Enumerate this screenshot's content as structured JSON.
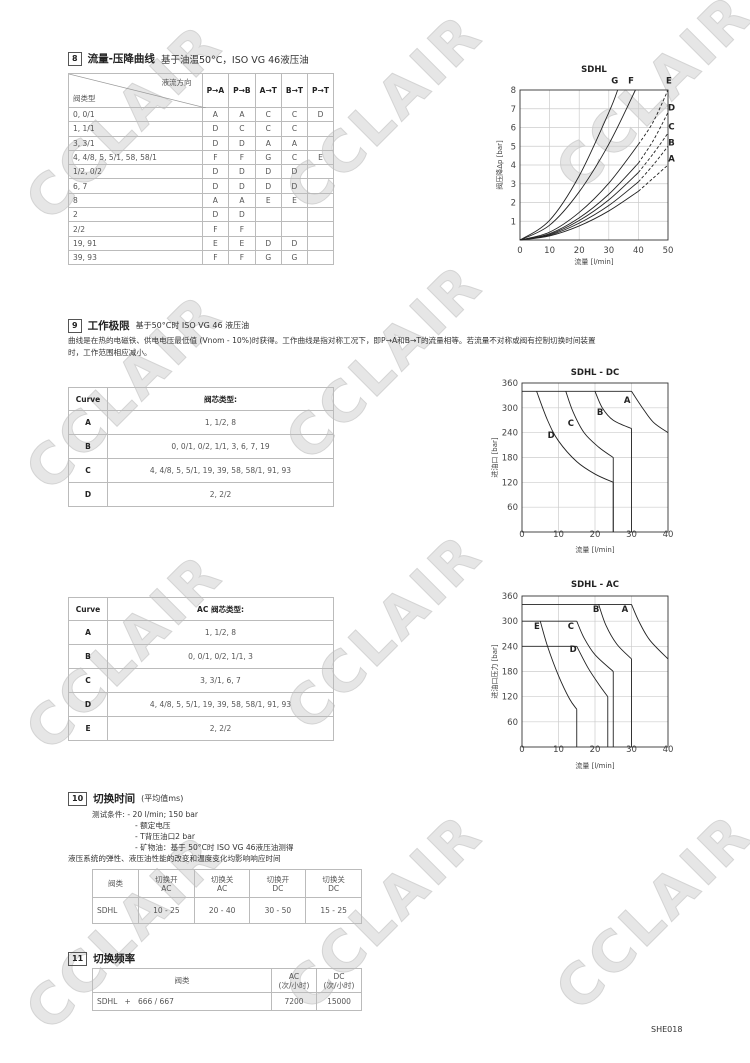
{
  "watermark": "CCLAIR",
  "section8": {
    "number": "8",
    "title": "流量-压降曲线",
    "subtitle": "基于油温50°C，ISO VG 46液压油",
    "table": {
      "corner_top": "液流方向",
      "corner_bottom": "阀类型",
      "columns": [
        "P→A",
        "P→B",
        "A→T",
        "B→T",
        "P→T"
      ],
      "rows": [
        {
          "type": "0, 0/1",
          "values": [
            "A",
            "A",
            "C",
            "C",
            "D"
          ]
        },
        {
          "type": "1, 1/1",
          "values": [
            "D",
            "C",
            "C",
            "C",
            ""
          ]
        },
        {
          "type": "3, 3/1",
          "values": [
            "D",
            "D",
            "A",
            "A",
            ""
          ]
        },
        {
          "type": "4, 4/8, 5, 5/1, 58, 58/1",
          "values": [
            "F",
            "F",
            "G",
            "C",
            "E"
          ]
        },
        {
          "type": "1/2, 0/2",
          "values": [
            "D",
            "D",
            "D",
            "D",
            ""
          ]
        },
        {
          "type": "6, 7",
          "values": [
            "D",
            "D",
            "D",
            "D",
            ""
          ]
        },
        {
          "type": "8",
          "values": [
            "A",
            "A",
            "E",
            "E",
            ""
          ]
        },
        {
          "type": "2",
          "values": [
            "D",
            "D",
            "",
            "",
            ""
          ]
        },
        {
          "type": "2/2",
          "values": [
            "F",
            "F",
            "",
            "",
            ""
          ]
        },
        {
          "type": "19, 91",
          "values": [
            "E",
            "E",
            "D",
            "D",
            ""
          ]
        },
        {
          "type": "39, 93",
          "values": [
            "F",
            "F",
            "G",
            "G",
            ""
          ]
        }
      ]
    }
  },
  "section9": {
    "number": "9",
    "title": "工作极限",
    "subtitle": "基于50°C时 ISO VG 46 液压油",
    "paragraph_line1": "曲线是在热的电磁铁、供电电压最低值 (Vnom - 10%)时获得。工作曲线是指对称工况下，即P→A和B→T的流量相等。若流量不对称或阀有控制切换时间装置",
    "paragraph_line2": "时，工作范围相应减小。",
    "dc_table": {
      "headers": [
        "Curve",
        "阀芯类型:"
      ],
      "rows": [
        {
          "curve": "A",
          "types": "1, 1/2, 8"
        },
        {
          "curve": "B",
          "types": "0, 0/1, 0/2, 1/1, 3, 6, 7, 19"
        },
        {
          "curve": "C",
          "types": "4, 4/8, 5, 5/1, 19, 39, 58, 58/1, 91, 93"
        },
        {
          "curve": "D",
          "types": "2, 2/2"
        }
      ]
    },
    "ac_table": {
      "headers": [
        "Curve",
        "AC 阀芯类型:"
      ],
      "rows": [
        {
          "curve": "A",
          "types": "1, 1/2, 8"
        },
        {
          "curve": "B",
          "types": "0, 0/1, 0/2, 1/1, 3"
        },
        {
          "curve": "C",
          "types": "3, 3/1, 6, 7"
        },
        {
          "curve": "D",
          "types": "4, 4/8, 5, 5/1, 19, 39, 58, 58/1, 91, 93"
        },
        {
          "curve": "E",
          "types": "2, 2/2"
        }
      ]
    }
  },
  "section10": {
    "number": "10",
    "title": "切换时间",
    "subtitle": "(平均值ms)",
    "conditions_label": "测试条件:",
    "conditions": [
      "- 20 l/min; 150 bar",
      "- 额定电压",
      "- T背压油口2 bar",
      "- 矿物油：基于 50°C时 ISO VG 46液压油测得"
    ],
    "note": "液压系统的弹性、液压油性能的改变和温度变化均影响响应时间",
    "table": {
      "headers": [
        [
          "阀类",
          ""
        ],
        [
          "切换开",
          "AC"
        ],
        [
          "切换关",
          "AC"
        ],
        [
          "切换开",
          "DC"
        ],
        [
          "切换关",
          "DC"
        ]
      ],
      "row": [
        "SDHL",
        "10 - 25",
        "20 - 40",
        "30 - 50",
        "15 - 25"
      ]
    }
  },
  "section11": {
    "number": "11",
    "title": "切换频率",
    "table": {
      "headers": [
        [
          "阀类",
          ""
        ],
        [
          "AC",
          "(次/小时)"
        ],
        [
          "DC",
          "(次/小时)"
        ]
      ],
      "row": [
        "SDHL   +   666 / 667",
        "7200",
        "15000"
      ]
    }
  },
  "footer": {
    "code": "SHE018"
  },
  "chart_data": [
    {
      "type": "line",
      "title": "SDHL",
      "xlabel": "流量 [l/min]",
      "ylabel": "阀压降Δp [bar]",
      "xlim": [
        0,
        50
      ],
      "ylim": [
        0,
        8
      ],
      "xticks": [
        0,
        10,
        20,
        30,
        40,
        50
      ],
      "yticks": [
        1,
        2,
        3,
        4,
        5,
        6,
        7,
        8
      ],
      "grid": true,
      "series": [
        {
          "name": "G",
          "segments": [
            {
              "kind": "curve",
              "points": [
                [
                  0,
                  0
                ],
                [
                  10,
                  1.05
                ],
                [
                  20,
                  3.42
                ],
                [
                  30,
                  6.8
                ],
                [
                  33,
                  8
                ]
              ]
            }
          ]
        },
        {
          "name": "F",
          "segments": [
            {
              "kind": "curve",
              "points": [
                [
                  0,
                  0
                ],
                [
                  10,
                  0.79
                ],
                [
                  20,
                  2.57
                ],
                [
                  30,
                  5.11
                ],
                [
                  39,
                  8
                ]
              ]
            }
          ]
        },
        {
          "name": "E",
          "segments": [
            {
              "kind": "curve",
              "points": [
                [
                  0,
                  0
                ],
                [
                  10,
                  0.42
                ],
                [
                  20,
                  1.47
                ],
                [
                  30,
                  3.03
                ],
                [
                  40,
                  5.1
                ]
              ]
            },
            {
              "kind": "curve",
              "dashed": true,
              "points": [
                [
                  40,
                  5.1
                ],
                [
                  45,
                  6.3
                ],
                [
                  50,
                  8
                ]
              ]
            }
          ]
        },
        {
          "name": "D",
          "segments": [
            {
              "kind": "curve",
              "points": [
                [
                  0,
                  0
                ],
                [
                  10,
                  0.34
                ],
                [
                  20,
                  1.18
                ],
                [
                  30,
                  2.44
                ],
                [
                  40,
                  4.1
                ]
              ]
            },
            {
              "kind": "curve",
              "dashed": true,
              "points": [
                [
                  40,
                  4.1
                ],
                [
                  45,
                  5.3
                ],
                [
                  50,
                  6.8
                ]
              ]
            }
          ]
        },
        {
          "name": "C",
          "segments": [
            {
              "kind": "curve",
              "points": [
                [
                  0,
                  0
                ],
                [
                  10,
                  0.3
                ],
                [
                  20,
                  1.04
                ],
                [
                  30,
                  2.14
                ],
                [
                  40,
                  3.6
                ]
              ]
            },
            {
              "kind": "curve",
              "dashed": true,
              "points": [
                [
                  40,
                  3.6
                ],
                [
                  45,
                  4.6
                ],
                [
                  50,
                  5.7
                ]
              ]
            }
          ]
        },
        {
          "name": "B",
          "segments": [
            {
              "kind": "curve",
              "points": [
                [
                  0,
                  0
                ],
                [
                  10,
                  0.26
                ],
                [
                  20,
                  0.9
                ],
                [
                  30,
                  1.84
                ],
                [
                  40,
                  3.1
                ]
              ]
            },
            {
              "kind": "curve",
              "dashed": true,
              "points": [
                [
                  40,
                  3.1
                ],
                [
                  45,
                  4.0
                ],
                [
                  50,
                  5.0
                ]
              ]
            }
          ]
        },
        {
          "name": "A",
          "segments": [
            {
              "kind": "curve",
              "points": [
                [
                  0,
                  0
                ],
                [
                  10,
                  0.22
                ],
                [
                  20,
                  0.75
                ],
                [
                  30,
                  1.55
                ],
                [
                  40,
                  2.6
                ]
              ]
            },
            {
              "kind": "curve",
              "dashed": true,
              "points": [
                [
                  40,
                  2.6
                ],
                [
                  45,
                  3.3
                ],
                [
                  50,
                  4.0
                ]
              ]
            }
          ]
        }
      ]
    },
    {
      "type": "line",
      "title": "SDHL - DC",
      "xlabel": "流量 [l/min]",
      "ylabel": "进油口 [bar]",
      "xlim": [
        0,
        40
      ],
      "ylim": [
        0,
        360
      ],
      "xticks": [
        0,
        10,
        20,
        30,
        40
      ],
      "yticks": [
        60,
        120,
        180,
        240,
        300,
        360
      ],
      "grid": true,
      "series": [
        {
          "name": "A",
          "segments": [
            {
              "kind": "line",
              "points": [
                [
                  0,
                  340
                ],
                [
                  30,
                  340
                ]
              ]
            },
            {
              "kind": "curve",
              "points": [
                [
                  30,
                  340
                ],
                [
                  33,
                  300
                ],
                [
                  36,
                  265
                ],
                [
                  40,
                  240
                ]
              ]
            }
          ]
        },
        {
          "name": "B",
          "segments": [
            {
              "kind": "curve",
              "points": [
                [
                  20,
                  340
                ],
                [
                  22,
                  300
                ],
                [
                  25,
                  270
                ],
                [
                  30,
                  250
                ]
              ]
            },
            {
              "kind": "line",
              "points": [
                [
                  30,
                  250
                ],
                [
                  30,
                  0
                ]
              ]
            }
          ]
        },
        {
          "name": "C",
          "segments": [
            {
              "kind": "curve",
              "points": [
                [
                  12,
                  340
                ],
                [
                  14,
                  290
                ],
                [
                  17,
                  240
                ],
                [
                  21,
                  205
                ],
                [
                  25,
                  180
                ]
              ]
            },
            {
              "kind": "line",
              "points": [
                [
                  25,
                  180
                ],
                [
                  25,
                  0
                ]
              ]
            }
          ]
        },
        {
          "name": "D",
          "segments": [
            {
              "kind": "curve",
              "points": [
                [
                  4,
                  340
                ],
                [
                  7,
                  270
                ],
                [
                  10,
                  220
                ],
                [
                  15,
                  170
                ],
                [
                  20,
                  140
                ],
                [
                  25,
                  120
                ]
              ]
            },
            {
              "kind": "line",
              "points": [
                [
                  25,
                  120
                ],
                [
                  25,
                  0
                ]
              ]
            }
          ]
        }
      ]
    },
    {
      "type": "line",
      "title": "SDHL - AC",
      "xlabel": "流量 [l/min]",
      "ylabel": "进油口压力 [bar]",
      "xlim": [
        0,
        40
      ],
      "ylim": [
        0,
        360
      ],
      "xticks": [
        0,
        10,
        20,
        30,
        40
      ],
      "yticks": [
        60,
        120,
        180,
        240,
        300,
        360
      ],
      "grid": true,
      "series": [
        {
          "name": "A",
          "segments": [
            {
              "kind": "line",
              "points": [
                [
                  0,
                  340
                ],
                [
                  30,
                  340
                ]
              ]
            },
            {
              "kind": "curve",
              "points": [
                [
                  30,
                  340
                ],
                [
                  32,
                  300
                ],
                [
                  35,
                  255
                ],
                [
                  40,
                  210
                ]
              ]
            }
          ]
        },
        {
          "name": "B",
          "segments": [
            {
              "kind": "curve",
              "points": [
                [
                  21,
                  340
                ],
                [
                  23,
                  290
                ],
                [
                  26,
                  245
                ],
                [
                  30,
                  210
                ]
              ]
            },
            {
              "kind": "line",
              "points": [
                [
                  30,
                  210
                ],
                [
                  30,
                  0
                ]
              ]
            }
          ]
        },
        {
          "name": "C",
          "segments": [
            {
              "kind": "line",
              "points": [
                [
                  0,
                  300
                ],
                [
                  15,
                  300
                ]
              ]
            },
            {
              "kind": "curve",
              "points": [
                [
                  15,
                  300
                ],
                [
                  17,
                  260
                ],
                [
                  20,
                  220
                ],
                [
                  25,
                  180
                ]
              ]
            },
            {
              "kind": "line",
              "points": [
                [
                  25,
                  180
                ],
                [
                  25,
                  0
                ]
              ]
            }
          ]
        },
        {
          "name": "D",
          "segments": [
            {
              "kind": "line",
              "points": [
                [
                  0,
                  240
                ],
                [
                  15,
                  240
                ]
              ]
            },
            {
              "kind": "curve",
              "points": [
                [
                  15,
                  240
                ],
                [
                  18,
                  190
                ],
                [
                  21,
                  150
                ],
                [
                  23.5,
                  120
                ]
              ]
            },
            {
              "kind": "line",
              "points": [
                [
                  23.5,
                  120
                ],
                [
                  23.5,
                  0
                ]
              ]
            }
          ]
        },
        {
          "name": "E",
          "segments": [
            {
              "kind": "curve",
              "points": [
                [
                  5,
                  300
                ],
                [
                  7,
                  240
                ],
                [
                  10,
                  170
                ],
                [
                  13,
                  115
                ],
                [
                  15,
                  90
                ]
              ]
            },
            {
              "kind": "line",
              "points": [
                [
                  15,
                  90
                ],
                [
                  15,
                  0
                ]
              ]
            }
          ]
        }
      ]
    }
  ]
}
